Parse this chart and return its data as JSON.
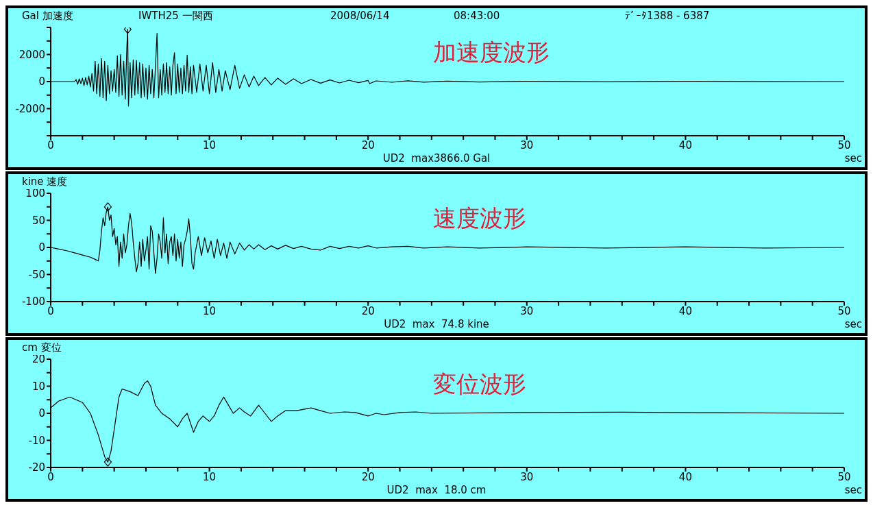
{
  "chart_data": [
    {
      "type": "line",
      "title": "加速度波形",
      "ylabel": "Gal 加速度",
      "xlabel": "sec",
      "annotations": [
        "IWTH25 一関西",
        "2008/06/14",
        "08:43:00",
        "ﾃﾞｰﾀ1388 - 6387",
        "UD2  max3866.0 Gal"
      ],
      "xlim": [
        0,
        50
      ],
      "xticks": [
        0,
        {
          "value": 2,
          "label": null
        },
        {
          "value": 4,
          "label": null
        },
        {
          "value": 6,
          "label": null
        },
        {
          "value": 8,
          "label": null
        },
        10,
        {
          "value": 12,
          "label": null
        },
        {
          "value": 14,
          "label": null
        },
        {
          "value": 16,
          "label": null
        },
        {
          "value": 18,
          "label": null
        },
        20,
        {
          "value": 22,
          "label": null
        },
        {
          "value": 24,
          "label": null
        },
        {
          "value": 26,
          "label": null
        },
        {
          "value": 28,
          "label": null
        },
        30,
        {
          "value": 32,
          "label": null
        },
        {
          "value": 34,
          "label": null
        },
        {
          "value": 36,
          "label": null
        },
        {
          "value": 38,
          "label": null
        },
        40,
        {
          "value": 42,
          "label": null
        },
        {
          "value": 44,
          "label": null
        },
        {
          "value": 46,
          "label": null
        },
        {
          "value": 48,
          "label": null
        },
        50
      ],
      "ylim": [
        -4000,
        4000
      ],
      "yticks": [
        {
          "value": -4000,
          "label": null
        },
        {
          "value": -3000,
          "label": null
        },
        -2000,
        {
          "value": -1000,
          "label": null
        },
        0,
        {
          "value": 1000,
          "label": null
        },
        2000,
        {
          "value": 3000,
          "label": null
        },
        {
          "value": 4000,
          "label": null
        }
      ],
      "series": [
        {
          "type": "line",
          "color": "#000000",
          "x": [
            0,
            1.5,
            1.6,
            1.7,
            1.8,
            1.9,
            2.0,
            2.1,
            2.2,
            2.3,
            2.4,
            2.5,
            2.6,
            2.7,
            2.8,
            2.9,
            3.0,
            3.1,
            3.2,
            3.3,
            3.4,
            3.5,
            3.6,
            3.7,
            3.8,
            3.9,
            4.0,
            4.1,
            4.2,
            4.3,
            4.4,
            4.5,
            4.6,
            4.7,
            4.8,
            4.85,
            4.9,
            5.0,
            5.1,
            5.2,
            5.3,
            5.4,
            5.5,
            5.6,
            5.7,
            5.8,
            5.9,
            6.0,
            6.1,
            6.2,
            6.3,
            6.4,
            6.5,
            6.6,
            6.7,
            6.8,
            6.9,
            7.0,
            7.1,
            7.2,
            7.3,
            7.4,
            7.5,
            7.6,
            7.7,
            7.8,
            7.9,
            8.0,
            8.1,
            8.2,
            8.3,
            8.4,
            8.5,
            8.6,
            8.7,
            8.8,
            8.9,
            9.0,
            9.2,
            9.4,
            9.6,
            9.8,
            10.0,
            10.2,
            10.4,
            10.6,
            10.8,
            11.0,
            11.3,
            11.6,
            11.9,
            12.2,
            12.5,
            12.8,
            13.1,
            13.5,
            13.9,
            14.3,
            14.8,
            15.3,
            15.8,
            16.4,
            17.0,
            17.6,
            18.2,
            18.8,
            19.4,
            20.0,
            20.1,
            20.5,
            21.5,
            22.5,
            23.5,
            25,
            27,
            30,
            35,
            40,
            45,
            50
          ],
          "values": [
            0,
            0,
            150,
            -200,
            200,
            -150,
            250,
            -300,
            300,
            -250,
            400,
            -400,
            600,
            -700,
            1500,
            -900,
            1300,
            -1100,
            1700,
            -1200,
            1500,
            -1400,
            1200,
            -900,
            800,
            -700,
            900,
            -800,
            1900,
            -1100,
            2000,
            -1000,
            1500,
            -1300,
            2600,
            3866,
            -1800,
            1400,
            -1200,
            1600,
            -1000,
            1570,
            -900,
            1400,
            -1200,
            1300,
            -1100,
            1000,
            -1300,
            1200,
            -900,
            900,
            -1200,
            1100,
            3570,
            -1200,
            900,
            -1000,
            1300,
            -800,
            1400,
            -900,
            1100,
            -1000,
            1200,
            2130,
            -900,
            1300,
            -800,
            1000,
            -900,
            1200,
            -700,
            1960,
            -800,
            1100,
            -900,
            1200,
            -800,
            1300,
            -700,
            1200,
            -900,
            1400,
            -800,
            900,
            -700,
            800,
            -600,
            1200,
            -500,
            500,
            -400,
            400,
            -300,
            300,
            -250,
            250,
            -200,
            200,
            -150,
            150,
            -120,
            120,
            -100,
            100,
            -80,
            80,
            -150,
            50,
            -50,
            60,
            -40,
            30,
            -30,
            20,
            -20,
            20,
            -10,
            0
          ]
        },
        {
          "type": "scatter",
          "marker": "diamond",
          "color": "#000000",
          "x": [
            4.85
          ],
          "values": [
            3866
          ]
        }
      ]
    },
    {
      "type": "line",
      "title": "速度波形",
      "ylabel": "kine 速度",
      "xlabel": "sec",
      "annotations": [
        "UD2  max  74.8 kine"
      ],
      "xlim": [
        0,
        50
      ],
      "xticks": [
        0,
        {
          "value": 2,
          "label": null
        },
        {
          "value": 4,
          "label": null
        },
        {
          "value": 6,
          "label": null
        },
        {
          "value": 8,
          "label": null
        },
        10,
        {
          "value": 12,
          "label": null
        },
        {
          "value": 14,
          "label": null
        },
        {
          "value": 16,
          "label": null
        },
        {
          "value": 18,
          "label": null
        },
        20,
        {
          "value": 22,
          "label": null
        },
        {
          "value": 24,
          "label": null
        },
        {
          "value": 26,
          "label": null
        },
        {
          "value": 28,
          "label": null
        },
        30,
        {
          "value": 32,
          "label": null
        },
        {
          "value": 34,
          "label": null
        },
        {
          "value": 36,
          "label": null
        },
        {
          "value": 38,
          "label": null
        },
        40,
        {
          "value": 42,
          "label": null
        },
        {
          "value": 44,
          "label": null
        },
        {
          "value": 46,
          "label": null
        },
        {
          "value": 48,
          "label": null
        },
        50
      ],
      "ylim": [
        -100,
        100
      ],
      "yticks": [
        -100,
        {
          "value": -75,
          "label": null
        },
        -50,
        {
          "value": -25,
          "label": null
        },
        0,
        {
          "value": 25,
          "label": null
        },
        50,
        {
          "value": 75,
          "label": null
        },
        100
      ],
      "series": [
        {
          "type": "line",
          "color": "#000000",
          "x": [
            0,
            0.5,
            1,
            1.5,
            2,
            2.5,
            2.8,
            3.0,
            3.1,
            3.2,
            3.3,
            3.4,
            3.5,
            3.6,
            3.7,
            3.8,
            3.9,
            4.0,
            4.1,
            4.2,
            4.3,
            4.4,
            4.5,
            4.6,
            4.7,
            4.8,
            4.9,
            5.0,
            5.1,
            5.2,
            5.3,
            5.4,
            5.5,
            5.6,
            5.7,
            5.8,
            5.9,
            6.0,
            6.1,
            6.2,
            6.3,
            6.4,
            6.5,
            6.6,
            6.7,
            6.8,
            6.9,
            7.0,
            7.1,
            7.2,
            7.3,
            7.4,
            7.5,
            7.6,
            7.7,
            7.8,
            7.9,
            8.0,
            8.1,
            8.2,
            8.3,
            8.4,
            8.5,
            8.6,
            8.7,
            8.8,
            8.9,
            9.0,
            9.1,
            9.3,
            9.5,
            9.7,
            9.9,
            10.1,
            10.3,
            10.5,
            10.7,
            10.9,
            11.1,
            11.3,
            11.6,
            11.9,
            12.2,
            12.5,
            12.8,
            13.1,
            13.5,
            13.9,
            14.3,
            14.8,
            15.3,
            15.8,
            16.4,
            17.0,
            17.6,
            18.2,
            18.8,
            19.4,
            20.0,
            20.5,
            21.5,
            22.5,
            23.5,
            25,
            27,
            30,
            35,
            40,
            45,
            50
          ],
          "values": [
            0,
            -3,
            -6,
            -10,
            -14,
            -18,
            -22,
            -25,
            -5,
            30,
            55,
            40,
            65,
            74.8,
            50,
            60,
            20,
            35,
            5,
            20,
            -35,
            10,
            -20,
            25,
            -10,
            5,
            40,
            63,
            45,
            10,
            -20,
            -45,
            -30,
            10,
            -35,
            15,
            -25,
            -5,
            20,
            -40,
            40,
            30,
            -10,
            -48,
            -20,
            25,
            10,
            -20,
            55,
            -10,
            25,
            -30,
            10,
            20,
            -15,
            25,
            -25,
            15,
            -20,
            10,
            -35,
            5,
            15,
            30,
            53,
            20,
            -30,
            -40,
            -10,
            20,
            -15,
            18,
            -10,
            12,
            -20,
            15,
            -15,
            8,
            -20,
            10,
            -12,
            8,
            -5,
            5,
            -3,
            5,
            -4,
            3,
            -3,
            4,
            -2,
            2,
            -3,
            -5,
            2,
            -2,
            2,
            -1,
            3,
            -1,
            1,
            2,
            -1,
            1,
            -1,
            1,
            -1,
            1,
            -1,
            0
          ]
        },
        {
          "type": "scatter",
          "marker": "diamond",
          "color": "#000000",
          "x": [
            3.6
          ],
          "values": [
            74.8
          ]
        }
      ]
    },
    {
      "type": "line",
      "title": "変位波形",
      "ylabel": "cm 変位",
      "xlabel": "sec",
      "annotations": [
        "UD2  max  18.0 cm"
      ],
      "xlim": [
        0,
        50
      ],
      "xticks": [
        0,
        {
          "value": 2,
          "label": null
        },
        {
          "value": 4,
          "label": null
        },
        {
          "value": 6,
          "label": null
        },
        {
          "value": 8,
          "label": null
        },
        10,
        {
          "value": 12,
          "label": null
        },
        {
          "value": 14,
          "label": null
        },
        {
          "value": 16,
          "label": null
        },
        {
          "value": 18,
          "label": null
        },
        20,
        {
          "value": 22,
          "label": null
        },
        {
          "value": 24,
          "label": null
        },
        {
          "value": 26,
          "label": null
        },
        {
          "value": 28,
          "label": null
        },
        30,
        {
          "value": 32,
          "label": null
        },
        {
          "value": 34,
          "label": null
        },
        {
          "value": 36,
          "label": null
        },
        {
          "value": 38,
          "label": null
        },
        40,
        {
          "value": 42,
          "label": null
        },
        {
          "value": 44,
          "label": null
        },
        {
          "value": 46,
          "label": null
        },
        {
          "value": 48,
          "label": null
        },
        50
      ],
      "ylim": [
        -20,
        20
      ],
      "yticks": [
        -20,
        {
          "value": -15,
          "label": null
        },
        -10,
        {
          "value": -5,
          "label": null
        },
        0,
        {
          "value": 5,
          "label": null
        },
        10,
        {
          "value": 15,
          "label": null
        },
        20
      ],
      "series": [
        {
          "type": "line",
          "color": "#000000",
          "x": [
            0,
            0.5,
            1.2,
            2,
            2.5,
            3,
            3.4,
            3.6,
            3.8,
            4.1,
            4.3,
            4.5,
            5,
            5.5,
            5.9,
            6.1,
            6.3,
            6.6,
            7,
            7.5,
            8,
            8.3,
            8.6,
            9,
            9.3,
            9.6,
            10,
            10.3,
            10.6,
            10.9,
            11.2,
            11.5,
            11.9,
            12.2,
            12.6,
            13.1,
            13.5,
            13.9,
            14.3,
            14.8,
            15.5,
            16.4,
            17,
            17.6,
            18.5,
            19.2,
            20,
            20.5,
            21,
            22,
            23,
            24,
            30,
            36,
            42,
            50
          ],
          "values": [
            2,
            4.5,
            6,
            4,
            0,
            -8,
            -16,
            -18,
            -14,
            -2,
            6,
            9,
            8,
            6.5,
            11,
            12,
            10,
            3,
            0,
            -2,
            -5,
            -2,
            0,
            -7,
            -3,
            -1,
            -3,
            -1,
            3,
            6,
            3,
            0,
            2,
            0.5,
            -1,
            3,
            0,
            -3,
            -1,
            1,
            1,
            2,
            1,
            0,
            0.5,
            0.3,
            -1,
            0,
            -0.5,
            0.3,
            0.5,
            0,
            0.3,
            0.4,
            0.2,
            0
          ]
        },
        {
          "type": "scatter",
          "marker": "diamond",
          "color": "#000000",
          "x": [
            3.6
          ],
          "values": [
            -18
          ]
        }
      ]
    }
  ]
}
